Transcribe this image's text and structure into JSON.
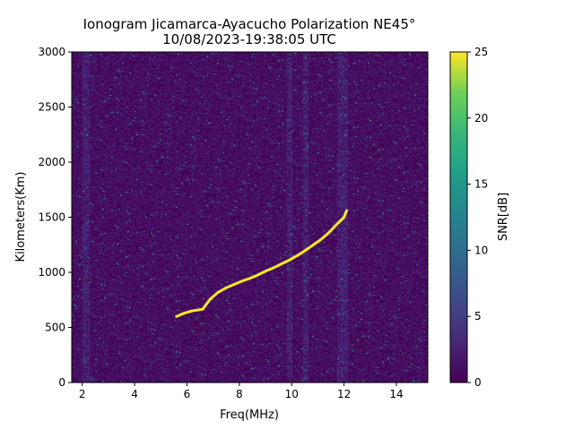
{
  "chart_data": {
    "type": "heatmap",
    "title_line1": "Ionogram Jicamarca-Ayacucho Polarization NE45°",
    "title_line2": "10/08/2023-19:38:05 UTC",
    "xlabel": "Freq(MHz)",
    "ylabel": "Kilometers(Km)",
    "xlim": [
      1.6,
      15.2
    ],
    "ylim": [
      0,
      3000
    ],
    "x_ticks": [
      "2",
      "4",
      "6",
      "8",
      "10",
      "12",
      "14"
    ],
    "x_tick_values": [
      2,
      4,
      6,
      8,
      10,
      12,
      14
    ],
    "y_ticks": [
      "0",
      "500",
      "1000",
      "1500",
      "2000",
      "2500",
      "3000"
    ],
    "y_tick_values": [
      0,
      500,
      1000,
      1500,
      2000,
      2500,
      3000
    ],
    "colorbar": {
      "label": "SNR[dB]",
      "range": [
        0,
        25
      ],
      "ticks": [
        "0",
        "5",
        "10",
        "15",
        "20",
        "25"
      ],
      "tick_values": [
        0,
        5,
        10,
        15,
        20,
        25
      ],
      "colormap": "viridis"
    },
    "trace": {
      "name": "",
      "snr_db": 25,
      "points": [
        [
          5.6,
          600
        ],
        [
          5.9,
          630
        ],
        [
          6.2,
          650
        ],
        [
          6.6,
          665
        ],
        [
          6.9,
          760
        ],
        [
          7.2,
          820
        ],
        [
          7.5,
          860
        ],
        [
          7.8,
          890
        ],
        [
          8.1,
          920
        ],
        [
          8.4,
          945
        ],
        [
          8.7,
          975
        ],
        [
          9.0,
          1010
        ],
        [
          9.3,
          1040
        ],
        [
          9.6,
          1075
        ],
        [
          9.9,
          1110
        ],
        [
          10.2,
          1150
        ],
        [
          10.5,
          1195
        ],
        [
          10.8,
          1245
        ],
        [
          11.1,
          1295
        ],
        [
          11.4,
          1355
        ],
        [
          11.7,
          1430
        ],
        [
          12.0,
          1500
        ],
        [
          12.1,
          1560
        ]
      ]
    },
    "interference_bands_mhz": [
      2.1,
      9.9,
      10.5,
      11.8,
      12.0
    ],
    "background_snr_db": 1
  }
}
